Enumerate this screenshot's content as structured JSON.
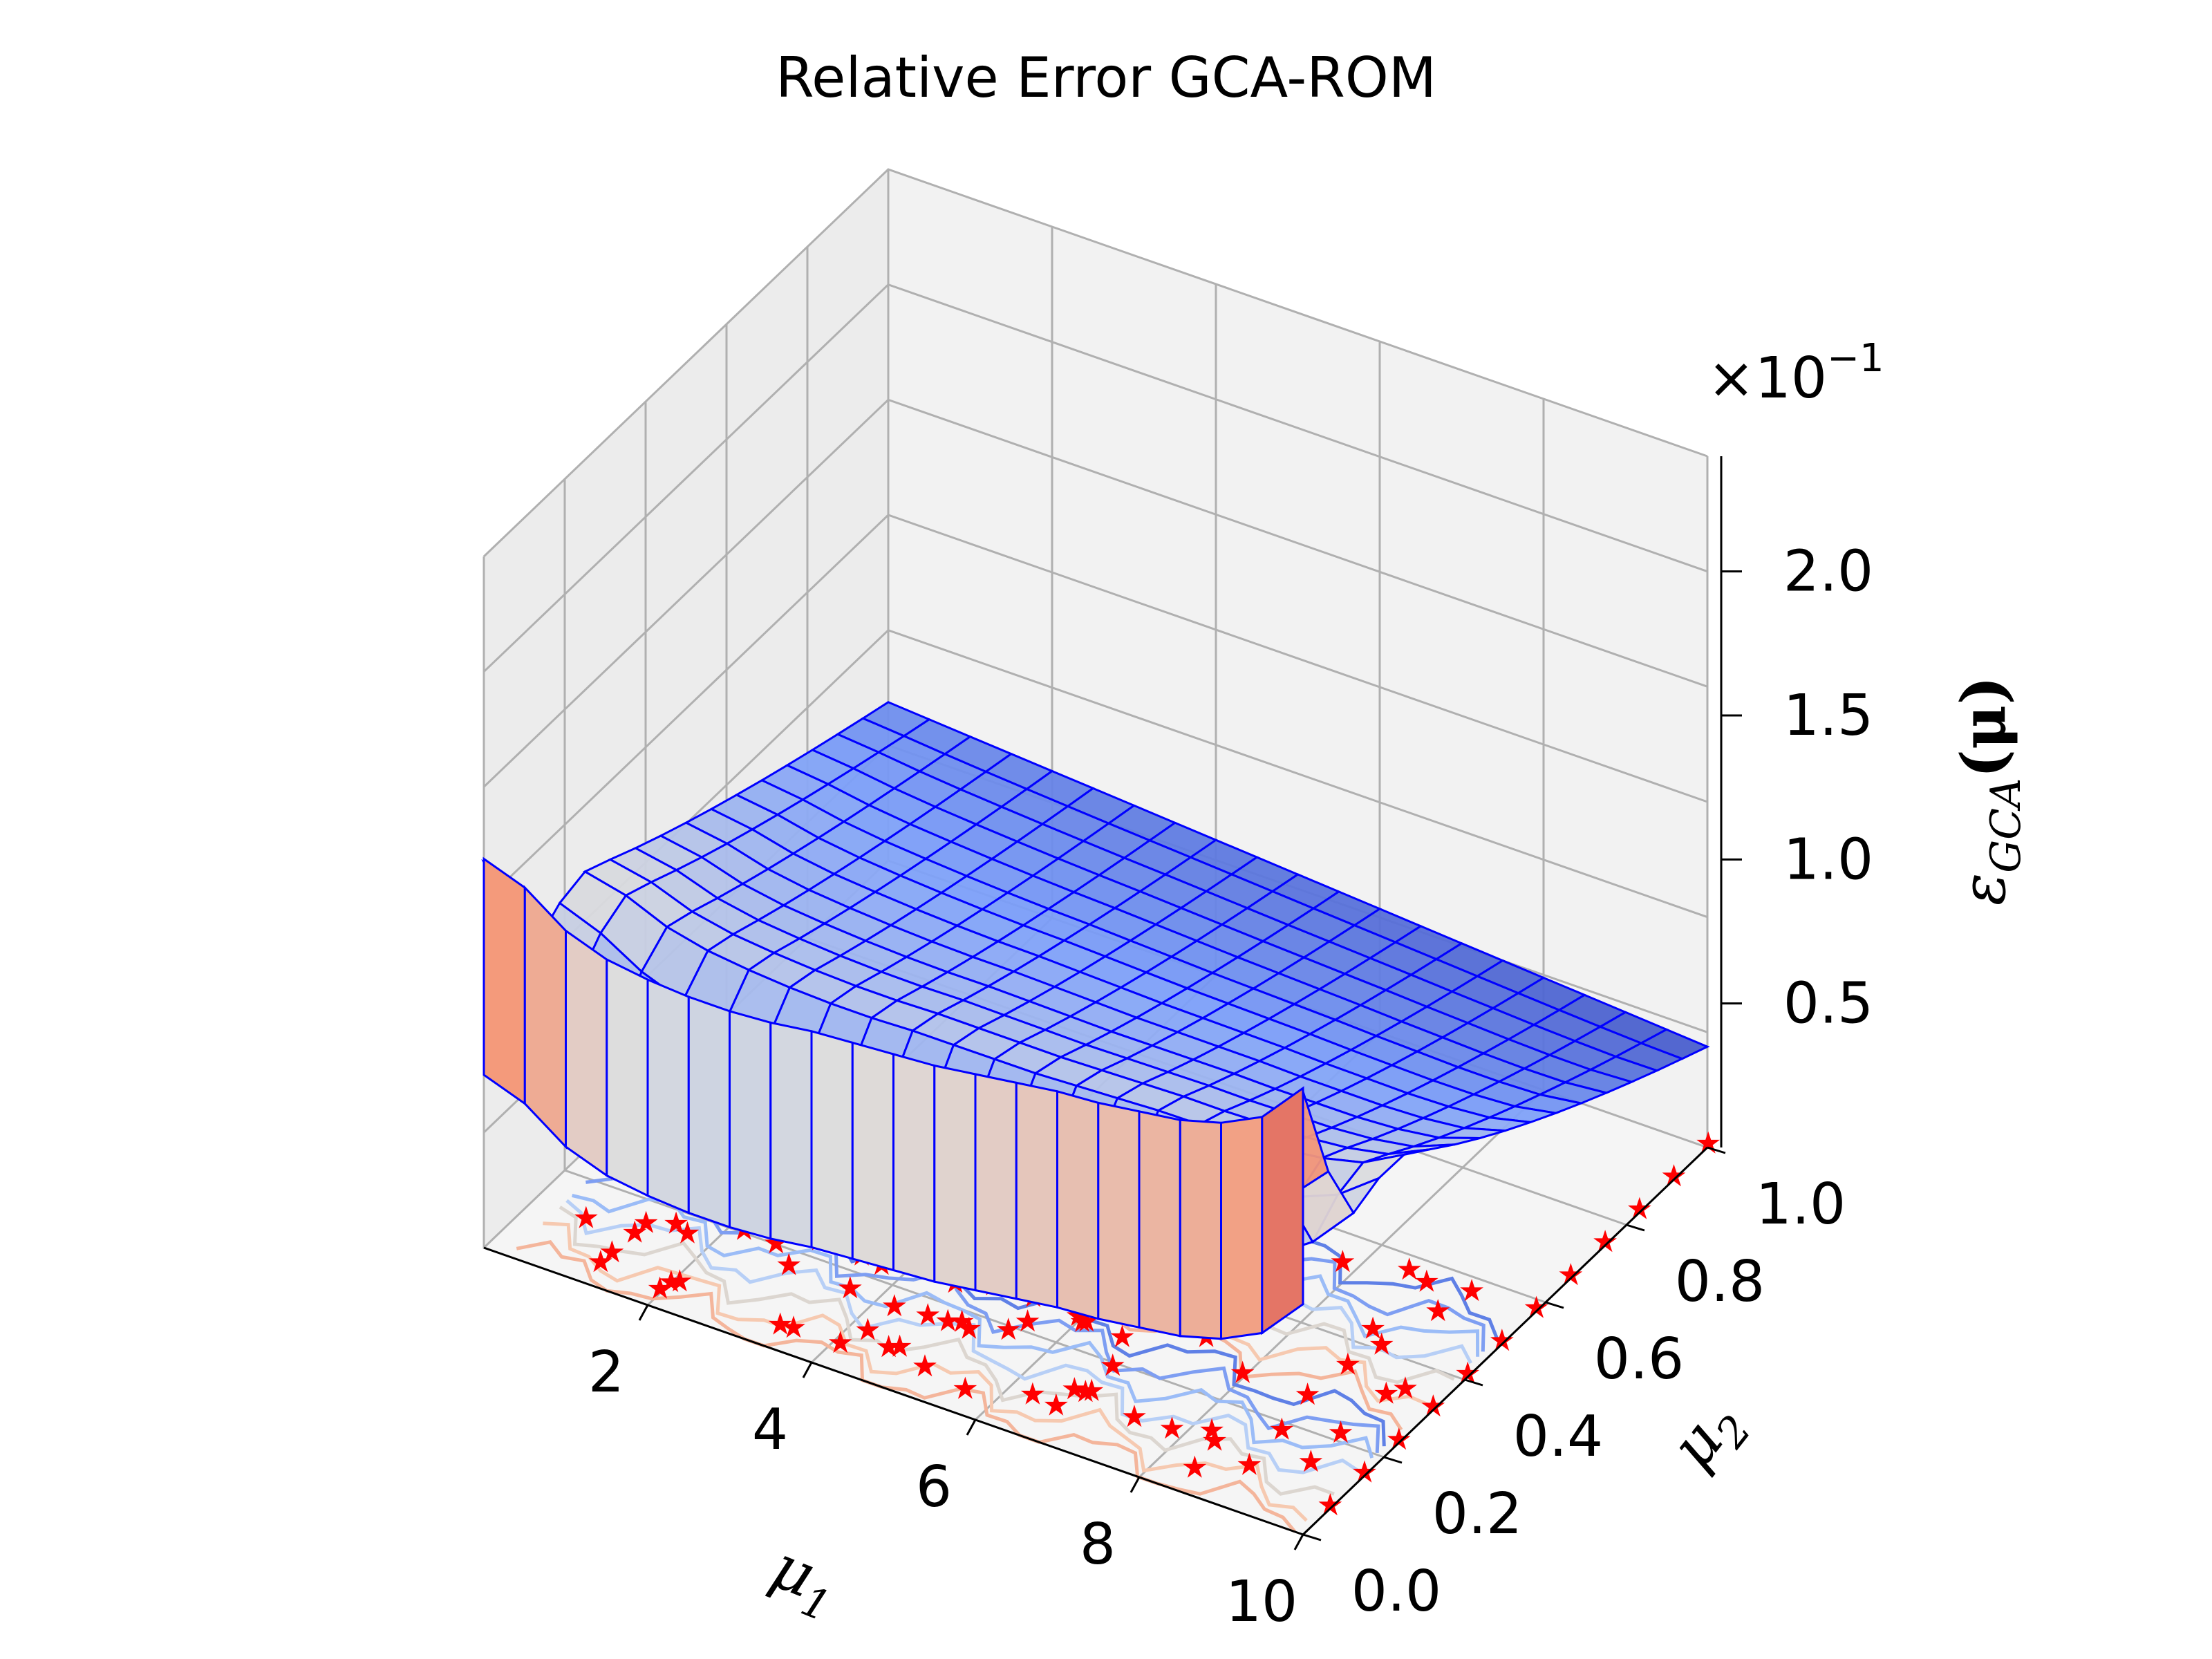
{
  "chart_data": {
    "type": "surface3d",
    "title": "Relative Error GCA-ROM",
    "x_axis": {
      "label": "μ",
      "label_sub": "1",
      "ticks": [
        "2",
        "4",
        "6",
        "8",
        "10"
      ],
      "range": [
        0,
        10
      ]
    },
    "y_axis": {
      "label": "μ",
      "label_sub": "2",
      "ticks": [
        "0.0",
        "0.2",
        "0.4",
        "0.6",
        "0.8",
        "1.0"
      ],
      "range": [
        0,
        1
      ]
    },
    "z_axis": {
      "label": "ε",
      "label_sub": "GCA",
      "label_suffix": "(μ)",
      "ticks": [
        "0.5",
        "1.0",
        "1.5",
        "2.0"
      ],
      "multiplier": "×10",
      "multiplier_exp": "−1",
      "range": [
        0.0,
        2.4
      ]
    },
    "surface": {
      "colormap": "coolwarm",
      "edge_color": "#0000ff",
      "front_edge_mu2": 0.0,
      "front_edge_values": [
        1.35,
        1.3,
        1.2,
        1.15,
        1.13,
        1.12,
        1.12,
        1.13,
        1.15,
        1.16,
        1.17,
        1.18,
        1.2,
        1.22,
        1.24,
        1.25,
        1.27,
        1.29,
        1.33,
        1.4,
        1.55
      ],
      "back_plateau_value": 0.55,
      "far_corner_value": 0.35
    },
    "training_points": {
      "marker": "★",
      "color": "#ff0000"
    },
    "contours": {
      "location": "floor",
      "colormap": "coolwarm"
    },
    "grid": true
  }
}
